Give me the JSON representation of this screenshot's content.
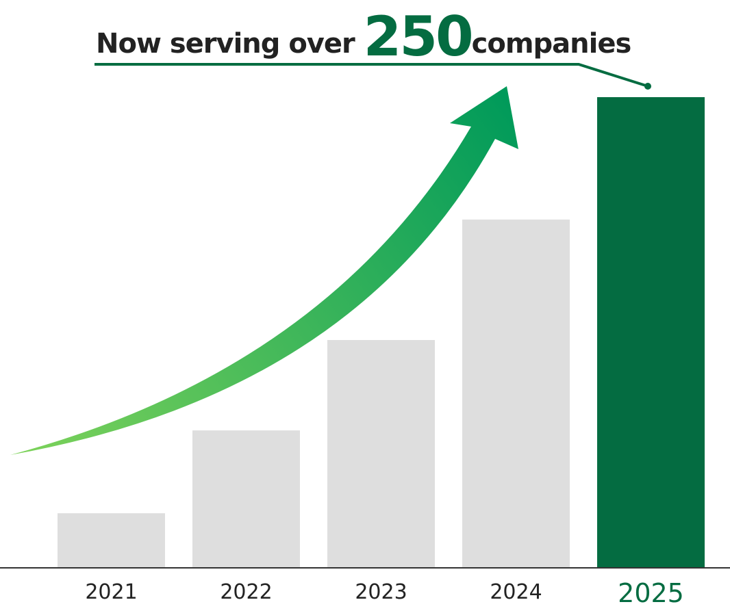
{
  "headline": {
    "prefix": "Now serving over",
    "number": "250",
    "suffix": "companies"
  },
  "colors": {
    "highlight": "#046c41",
    "bar": "#dedede",
    "text": "#222222",
    "arrow_start": "#7ed35a",
    "arrow_end": "#009a5a"
  },
  "chart_data": {
    "type": "bar",
    "title": "",
    "xlabel": "",
    "ylabel": "",
    "categories": [
      "2021",
      "2022",
      "2023",
      "2024",
      "2025"
    ],
    "values": [
      29,
      73,
      121,
      185,
      250
    ],
    "ylim": [
      0,
      250
    ],
    "grid": false,
    "highlighted_category": "2025",
    "annotation": "growth arrow"
  }
}
